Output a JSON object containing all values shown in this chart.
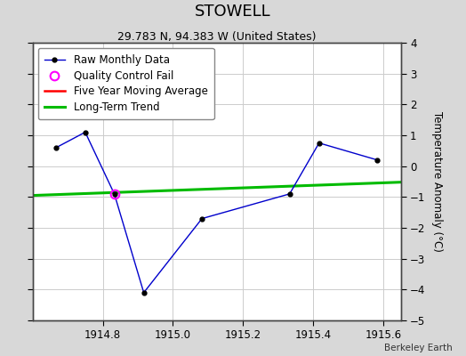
{
  "title": "STOWELL",
  "subtitle": "29.783 N, 94.383 W (United States)",
  "attribution": "Berkeley Earth",
  "raw_x": [
    1914.667,
    1914.75,
    1914.833,
    1914.917,
    1915.083,
    1915.333,
    1915.417,
    1915.583
  ],
  "raw_y": [
    0.6,
    1.1,
    -0.9,
    -4.1,
    -1.7,
    -0.9,
    0.75,
    0.2
  ],
  "qc_fail_x": [
    1914.833
  ],
  "qc_fail_y": [
    -0.9
  ],
  "trend_x": [
    1914.6,
    1915.65
  ],
  "trend_y": [
    -0.95,
    -0.52
  ],
  "xlim": [
    1914.6,
    1915.65
  ],
  "ylim": [
    -5,
    4
  ],
  "yticks": [
    -5,
    -4,
    -3,
    -2,
    -1,
    0,
    1,
    2,
    3,
    4
  ],
  "xticks": [
    1914.8,
    1915.0,
    1915.2,
    1915.4,
    1915.6
  ],
  "ylabel": "Temperature Anomaly (°C)",
  "raw_color": "#0000cc",
  "raw_markersize": 3.5,
  "raw_linewidth": 1.0,
  "qc_color": "#ff00ff",
  "qc_markersize": 7,
  "trend_color": "#00bb00",
  "trend_linewidth": 2.2,
  "five_year_color": "#ff0000",
  "five_year_linewidth": 1.8,
  "grid_color": "#cccccc",
  "plot_bg_color": "#ffffff",
  "outer_bg_color": "#d8d8d8",
  "title_fontsize": 13,
  "subtitle_fontsize": 9,
  "tick_fontsize": 8.5,
  "ylabel_fontsize": 8.5,
  "legend_fontsize": 8.5
}
